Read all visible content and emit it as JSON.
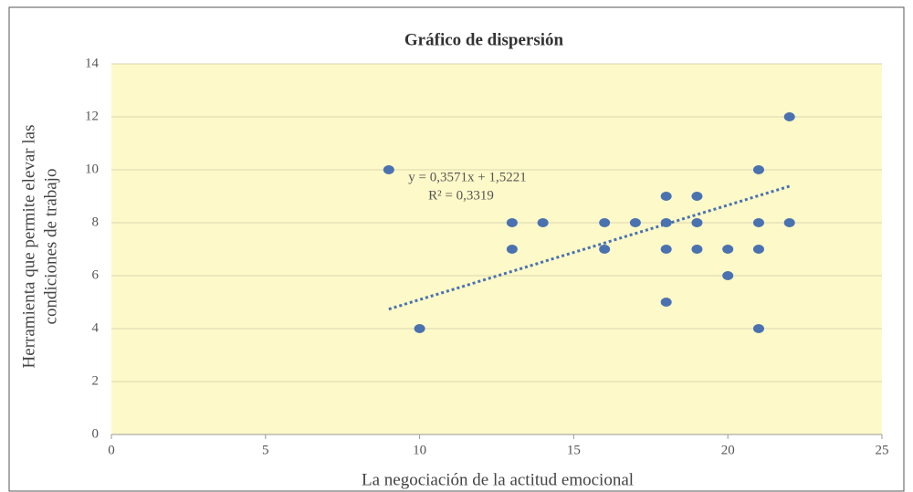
{
  "chart_data": {
    "type": "scatter",
    "title": "Gráfico de dispersión",
    "xlabel": "La negociación de la actitud emocional",
    "ylabel": [
      "Herramienta que permite elevar las",
      "condiciones de trabajo"
    ],
    "x": [
      9,
      10,
      13,
      13,
      14,
      16,
      16,
      17,
      18,
      18,
      18,
      18,
      19,
      19,
      19,
      20,
      20,
      21,
      21,
      21,
      21,
      22,
      22
    ],
    "values": [
      10,
      4,
      8,
      7,
      8,
      8,
      7,
      8,
      9,
      8,
      7,
      5,
      9,
      8,
      7,
      7,
      6,
      10,
      8,
      7,
      4,
      12,
      8
    ],
    "color": "#4a72b0",
    "xlim": [
      0,
      25
    ],
    "xticks": [
      0,
      5,
      10,
      15,
      20,
      25
    ],
    "ylim": [
      0,
      14
    ],
    "yticks": [
      0,
      2,
      4,
      6,
      8,
      10,
      12,
      14
    ],
    "grid": true,
    "trendline": {
      "slope": 0.3571,
      "intercept": 1.5221,
      "r2": 0.3319,
      "label": "y = 0,3571x  + 1,5221",
      "r2_label": "R² = 0,3319"
    }
  }
}
